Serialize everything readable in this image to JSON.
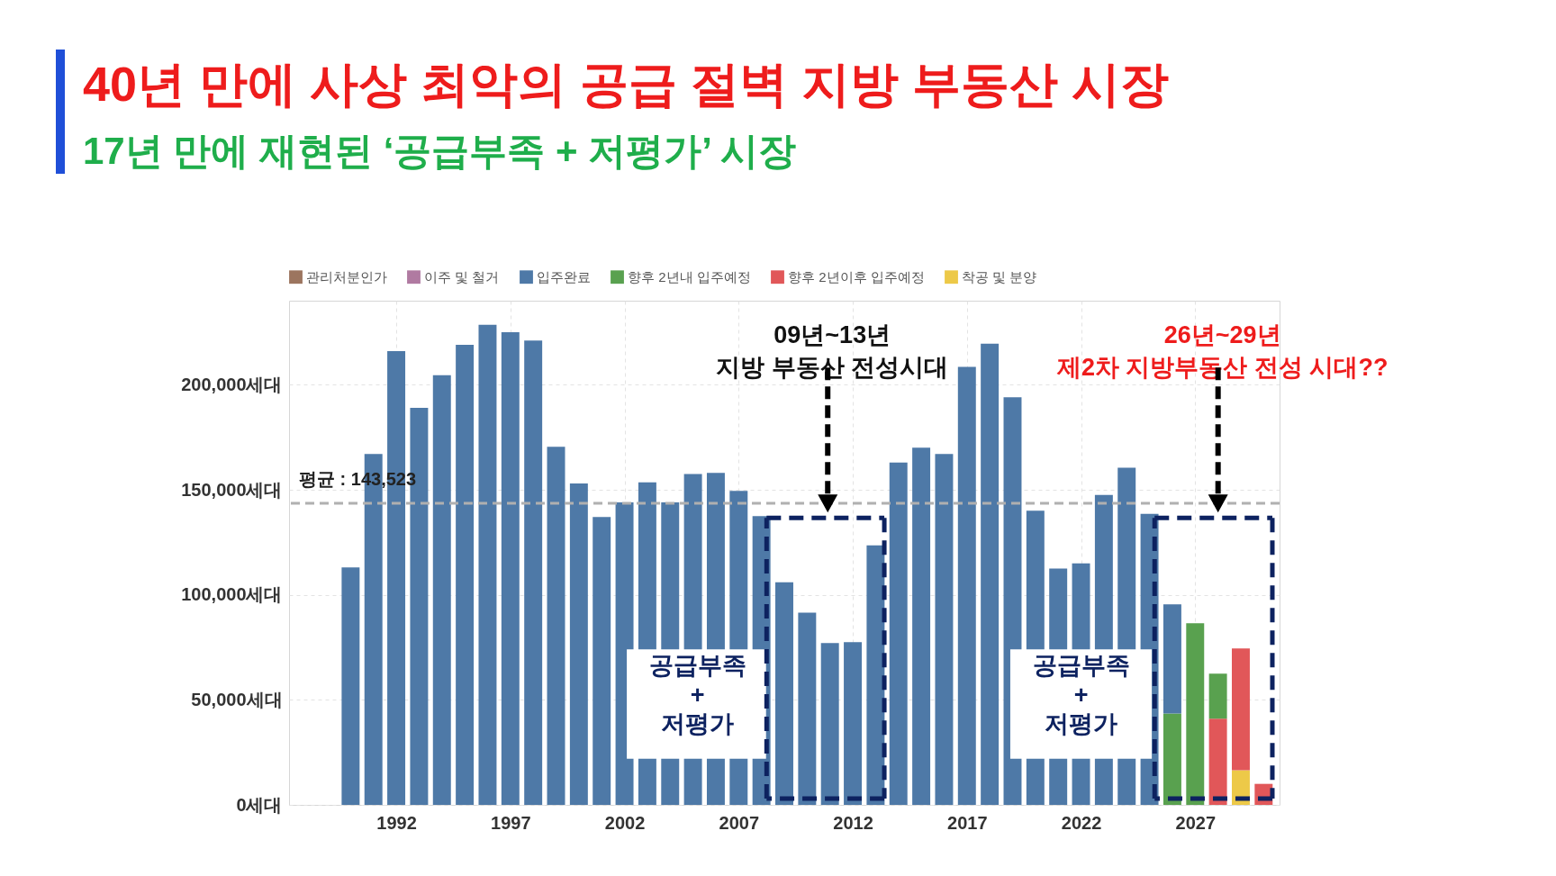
{
  "chart_data": {
    "type": "bar",
    "title": "40년 만에 사상 최악의 공급 절벽 지방 부동산 시장",
    "subtitle": "17년 만에 재현된 ‘공급부족 + 저평가’ 시장",
    "x": [
      1990,
      1991,
      1992,
      1993,
      1994,
      1995,
      1996,
      1997,
      1998,
      1999,
      2000,
      2001,
      2002,
      2003,
      2004,
      2005,
      2006,
      2007,
      2008,
      2009,
      2010,
      2011,
      2012,
      2013,
      2014,
      2015,
      2016,
      2017,
      2018,
      2019,
      2020,
      2021,
      2022,
      2023,
      2024,
      2025,
      2026,
      2027,
      2028,
      2029,
      2030
    ],
    "stacked": true,
    "series": [
      {
        "name": "착공 및 분양",
        "color": "#edc948",
        "values": [
          null,
          null,
          null,
          null,
          null,
          null,
          null,
          null,
          null,
          null,
          null,
          null,
          null,
          null,
          null,
          null,
          null,
          null,
          null,
          null,
          null,
          null,
          null,
          null,
          null,
          null,
          null,
          null,
          null,
          null,
          null,
          null,
          null,
          null,
          null,
          null,
          null,
          null,
          null,
          16500,
          null
        ]
      },
      {
        "name": "향후 2년이후 입주예정",
        "color": "#e15759",
        "values": [
          null,
          null,
          null,
          null,
          null,
          null,
          null,
          null,
          null,
          null,
          null,
          null,
          null,
          null,
          null,
          null,
          null,
          null,
          null,
          null,
          null,
          null,
          null,
          null,
          null,
          null,
          null,
          null,
          null,
          null,
          null,
          null,
          null,
          null,
          null,
          null,
          null,
          null,
          41000,
          58000,
          10000
        ]
      },
      {
        "name": "향후 2년내 입주예정",
        "color": "#59a14f",
        "values": [
          null,
          null,
          null,
          null,
          null,
          null,
          null,
          null,
          null,
          null,
          null,
          null,
          null,
          null,
          null,
          null,
          null,
          null,
          null,
          null,
          null,
          null,
          null,
          null,
          null,
          null,
          null,
          null,
          null,
          null,
          null,
          null,
          null,
          null,
          null,
          null,
          43500,
          86500,
          21500,
          null,
          null
        ]
      },
      {
        "name": "입주완료",
        "color": "#4e79a7",
        "values": [
          113000,
          167000,
          216000,
          189000,
          204500,
          219000,
          228500,
          225000,
          221000,
          170500,
          153000,
          137000,
          144000,
          153500,
          144000,
          157500,
          158000,
          149500,
          137500,
          106000,
          91500,
          77000,
          77500,
          123500,
          163000,
          170000,
          167000,
          208500,
          219500,
          194000,
          140000,
          112500,
          115000,
          147500,
          160500,
          138500,
          52000,
          null,
          null,
          null,
          null
        ]
      },
      {
        "name": "이주 및 철거",
        "color": "#b07aa1",
        "values": [
          null,
          null,
          null,
          null,
          null,
          null,
          null,
          null,
          null,
          null,
          null,
          null,
          null,
          null,
          null,
          null,
          null,
          null,
          null,
          null,
          null,
          null,
          null,
          null,
          null,
          null,
          null,
          null,
          null,
          null,
          null,
          null,
          null,
          null,
          null,
          null,
          null,
          null,
          null,
          null,
          null
        ]
      },
      {
        "name": "관리처분인가",
        "color": "#9c755f",
        "values": [
          null,
          null,
          null,
          null,
          null,
          null,
          null,
          null,
          null,
          null,
          null,
          null,
          null,
          null,
          null,
          null,
          null,
          null,
          null,
          null,
          null,
          null,
          null,
          null,
          null,
          null,
          null,
          null,
          null,
          null,
          null,
          null,
          null,
          null,
          null,
          null,
          null,
          null,
          null,
          null,
          null
        ]
      }
    ],
    "xlim": [
      1987.5,
      2030.5
    ],
    "xticks": [
      1992,
      1997,
      2002,
      2007,
      2012,
      2017,
      2022,
      2027
    ],
    "ylim": [
      0,
      240000
    ],
    "yticks": [
      {
        "value": 0,
        "label": "0세대"
      },
      {
        "value": 50000,
        "label": "50,000세대"
      },
      {
        "value": 100000,
        "label": "100,000세대"
      },
      {
        "value": 150000,
        "label": "150,000세대"
      },
      {
        "value": 200000,
        "label": "200,000세대"
      }
    ],
    "grid": true,
    "legend": "top",
    "ref_lines": [
      {
        "axis": "y",
        "value": 143523,
        "label": "평균 : 143,523",
        "color": "#b0b0b0",
        "line_style": "dashed"
      }
    ],
    "annotations": [
      "09년~13년\n지방 부동산 전성시대",
      "26년~29년\n제2차 지방부동산 전성 시대??",
      "공급부족\n+\n저평가",
      "공급부족\n+\n저평가"
    ]
  }
}
